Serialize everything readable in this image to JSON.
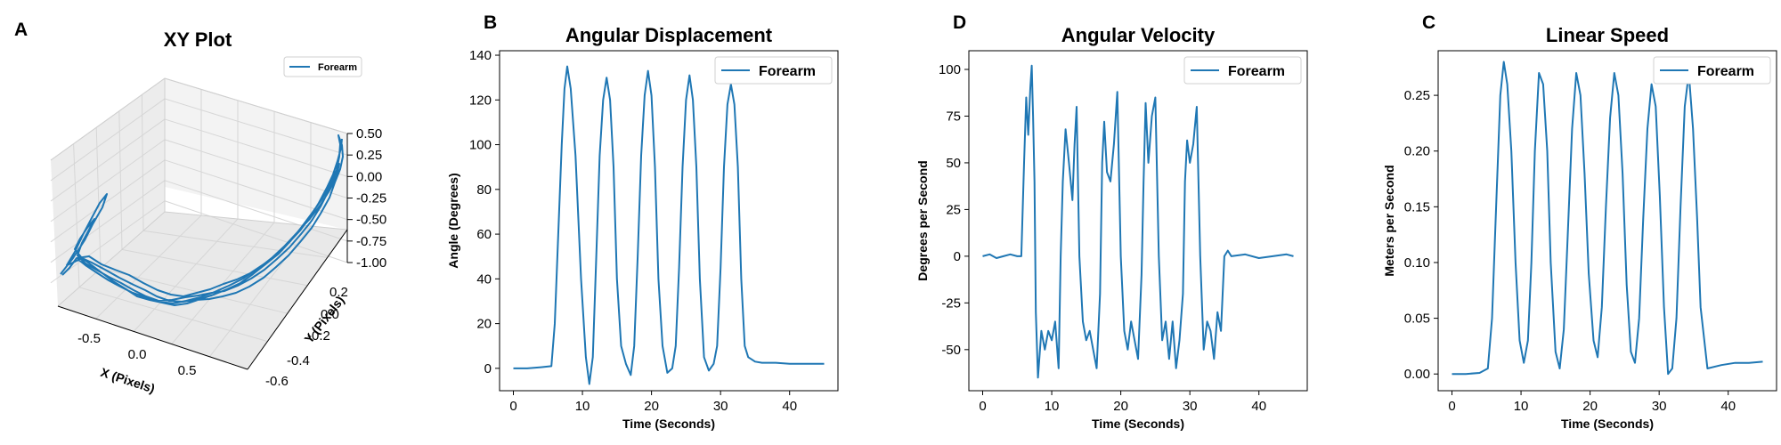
{
  "colors": {
    "series": "#1f77b4",
    "grid3d": "#dcdcdc",
    "pane": "#f2f2f2"
  },
  "chart_data": [
    {
      "panel": "A",
      "type": "line",
      "projection": "3d",
      "title": "XY Plot",
      "xlabel": "X (Pixels)",
      "ylabel": "Y (Pixels)",
      "zlabel": "",
      "xticks": [
        "-0.5",
        "0.0",
        "0.5"
      ],
      "yticks": [
        "-0.6",
        "-0.4",
        "-0.2",
        "0.0",
        "0.2"
      ],
      "zticks": [
        "0.50",
        "0.25",
        "0.00",
        "-0.25",
        "-0.50",
        "-0.75",
        "-1.00"
      ],
      "xlim": [
        -0.8,
        0.8
      ],
      "ylim": [
        -0.6,
        0.3
      ],
      "zlim": [
        -1.0,
        0.5
      ],
      "legend": [
        "Forearm"
      ],
      "legend_position": "top-right",
      "grid": true
    },
    {
      "panel": "B",
      "type": "line",
      "title": "Angular Displacement",
      "xlabel": "Time (Seconds)",
      "ylabel": "Angle (Degrees)",
      "xticks": [
        "0",
        "10",
        "20",
        "30",
        "40"
      ],
      "yticks": [
        "0",
        "20",
        "40",
        "60",
        "80",
        "100",
        "120",
        "140"
      ],
      "xlim": [
        -2,
        47
      ],
      "ylim": [
        -10,
        142
      ],
      "legend": [
        "Forearm"
      ],
      "legend_position": "top-right",
      "grid": false,
      "series": [
        {
          "name": "Forearm",
          "x": [
            0,
            2,
            4,
            5.5,
            6,
            6.5,
            7,
            7.4,
            7.8,
            8.3,
            9,
            9.8,
            10.5,
            11,
            11.5,
            12,
            12.5,
            13,
            13.5,
            14,
            14.5,
            15,
            15.6,
            16.3,
            17,
            17.5,
            18,
            18.5,
            19,
            19.5,
            20,
            20.5,
            21,
            21.6,
            22.3,
            23,
            23.5,
            24,
            24.5,
            25,
            25.5,
            26,
            26.5,
            27,
            27.6,
            28.3,
            29,
            29.5,
            30,
            30.5,
            31,
            31.5,
            32,
            32.5,
            33,
            33.5,
            34,
            34.5,
            35,
            36,
            38,
            40,
            42,
            44,
            45
          ],
          "y": [
            0,
            0,
            0.5,
            1,
            20,
            60,
            100,
            125,
            135,
            125,
            95,
            40,
            5,
            -7,
            5,
            50,
            95,
            120,
            130,
            120,
            90,
            40,
            10,
            2,
            -3,
            10,
            50,
            95,
            122,
            133,
            122,
            90,
            40,
            10,
            -2,
            0,
            10,
            45,
            90,
            120,
            131,
            120,
            90,
            40,
            5,
            -1,
            2,
            10,
            45,
            90,
            118,
            127,
            118,
            90,
            40,
            10,
            5,
            4,
            3,
            2.5,
            2.5,
            2,
            2,
            2,
            2
          ]
        }
      ]
    },
    {
      "panel": "D",
      "type": "line",
      "title": "Angular Velocity",
      "xlabel": "Time (Seconds)",
      "ylabel": "Degrees per Second",
      "xticks": [
        "0",
        "10",
        "20",
        "30",
        "40"
      ],
      "yticks": [
        "-50",
        "-25",
        "0",
        "25",
        "50",
        "75",
        "100"
      ],
      "xlim": [
        -2,
        47
      ],
      "ylim": [
        -72,
        110
      ],
      "legend": [
        "Forearm"
      ],
      "legend_position": "top-right",
      "grid": false,
      "series": [
        {
          "name": "Forearm",
          "x": [
            0,
            1,
            2,
            3,
            4,
            5,
            5.6,
            6,
            6.3,
            6.6,
            6.9,
            7.1,
            7.3,
            7.5,
            7.7,
            8,
            8.5,
            9,
            9.5,
            10,
            10.5,
            11,
            11.3,
            11.6,
            12,
            12.5,
            13,
            13.3,
            13.6,
            14,
            14.5,
            15,
            15.5,
            16,
            16.5,
            17,
            17.3,
            17.6,
            18,
            18.5,
            19,
            19.5,
            20,
            20.5,
            21,
            21.5,
            22,
            22.5,
            23,
            23.3,
            23.6,
            24,
            24.5,
            25,
            25.5,
            26,
            26.5,
            27,
            27.5,
            28,
            28.5,
            29,
            29.3,
            29.6,
            30,
            30.5,
            31,
            31.5,
            32,
            32.5,
            33,
            33.5,
            34,
            34.5,
            35,
            35.5,
            36,
            38,
            40,
            42,
            44,
            45
          ],
          "y": [
            0,
            1,
            -1,
            0,
            1,
            0,
            0,
            50,
            85,
            65,
            90,
            102,
            75,
            40,
            -30,
            -65,
            -40,
            -50,
            -40,
            -45,
            -35,
            -60,
            0,
            40,
            68,
            50,
            30,
            60,
            80,
            0,
            -35,
            -45,
            -40,
            -50,
            -60,
            -20,
            50,
            72,
            45,
            40,
            60,
            88,
            0,
            -40,
            -50,
            -35,
            -45,
            -55,
            -10,
            40,
            82,
            50,
            75,
            85,
            0,
            -45,
            -35,
            -55,
            -35,
            -60,
            -45,
            -20,
            40,
            62,
            50,
            60,
            80,
            0,
            -50,
            -35,
            -40,
            -55,
            -30,
            -40,
            0,
            3,
            0,
            1,
            -1,
            0,
            1,
            0
          ]
        }
      ]
    },
    {
      "panel": "C",
      "type": "line",
      "title": "Linear Speed",
      "xlabel": "Time (Seconds)",
      "ylabel": "Meters per Second",
      "xticks": [
        "0",
        "10",
        "20",
        "30",
        "40"
      ],
      "yticks": [
        "0.00",
        "0.05",
        "0.10",
        "0.15",
        "0.20",
        "0.25"
      ],
      "xlim": [
        -2,
        47
      ],
      "ylim": [
        -0.015,
        0.29
      ],
      "legend": [
        "Forearm"
      ],
      "legend_position": "top-right",
      "grid": false,
      "series": [
        {
          "name": "Forearm",
          "x": [
            0,
            2,
            4,
            5.2,
            5.8,
            6.4,
            7,
            7.5,
            8,
            8.6,
            9.2,
            9.8,
            10.4,
            11,
            11.5,
            12,
            12.6,
            13.2,
            13.8,
            14.3,
            15,
            15.6,
            16.2,
            16.8,
            17.4,
            18,
            18.6,
            19.2,
            19.8,
            20.5,
            21.1,
            21.7,
            22.3,
            22.9,
            23.5,
            24.1,
            24.7,
            25.3,
            25.9,
            26.5,
            27.1,
            27.7,
            28.3,
            28.9,
            29.5,
            30.1,
            30.7,
            31.3,
            31.9,
            32.5,
            33.1,
            33.7,
            34.3,
            34.9,
            35.5,
            36,
            37,
            39,
            41,
            43,
            45
          ],
          "y": [
            0,
            0,
            0.001,
            0.005,
            0.05,
            0.15,
            0.25,
            0.28,
            0.26,
            0.2,
            0.1,
            0.03,
            0.01,
            0.03,
            0.1,
            0.2,
            0.27,
            0.26,
            0.2,
            0.1,
            0.02,
            0.005,
            0.04,
            0.13,
            0.22,
            0.27,
            0.25,
            0.18,
            0.09,
            0.03,
            0.015,
            0.06,
            0.15,
            0.23,
            0.27,
            0.25,
            0.18,
            0.08,
            0.02,
            0.01,
            0.05,
            0.14,
            0.22,
            0.26,
            0.24,
            0.16,
            0.06,
            0,
            0.005,
            0.05,
            0.15,
            0.24,
            0.27,
            0.22,
            0.14,
            0.06,
            0.005,
            0.008,
            0.01,
            0.01,
            0.011
          ]
        }
      ]
    }
  ]
}
